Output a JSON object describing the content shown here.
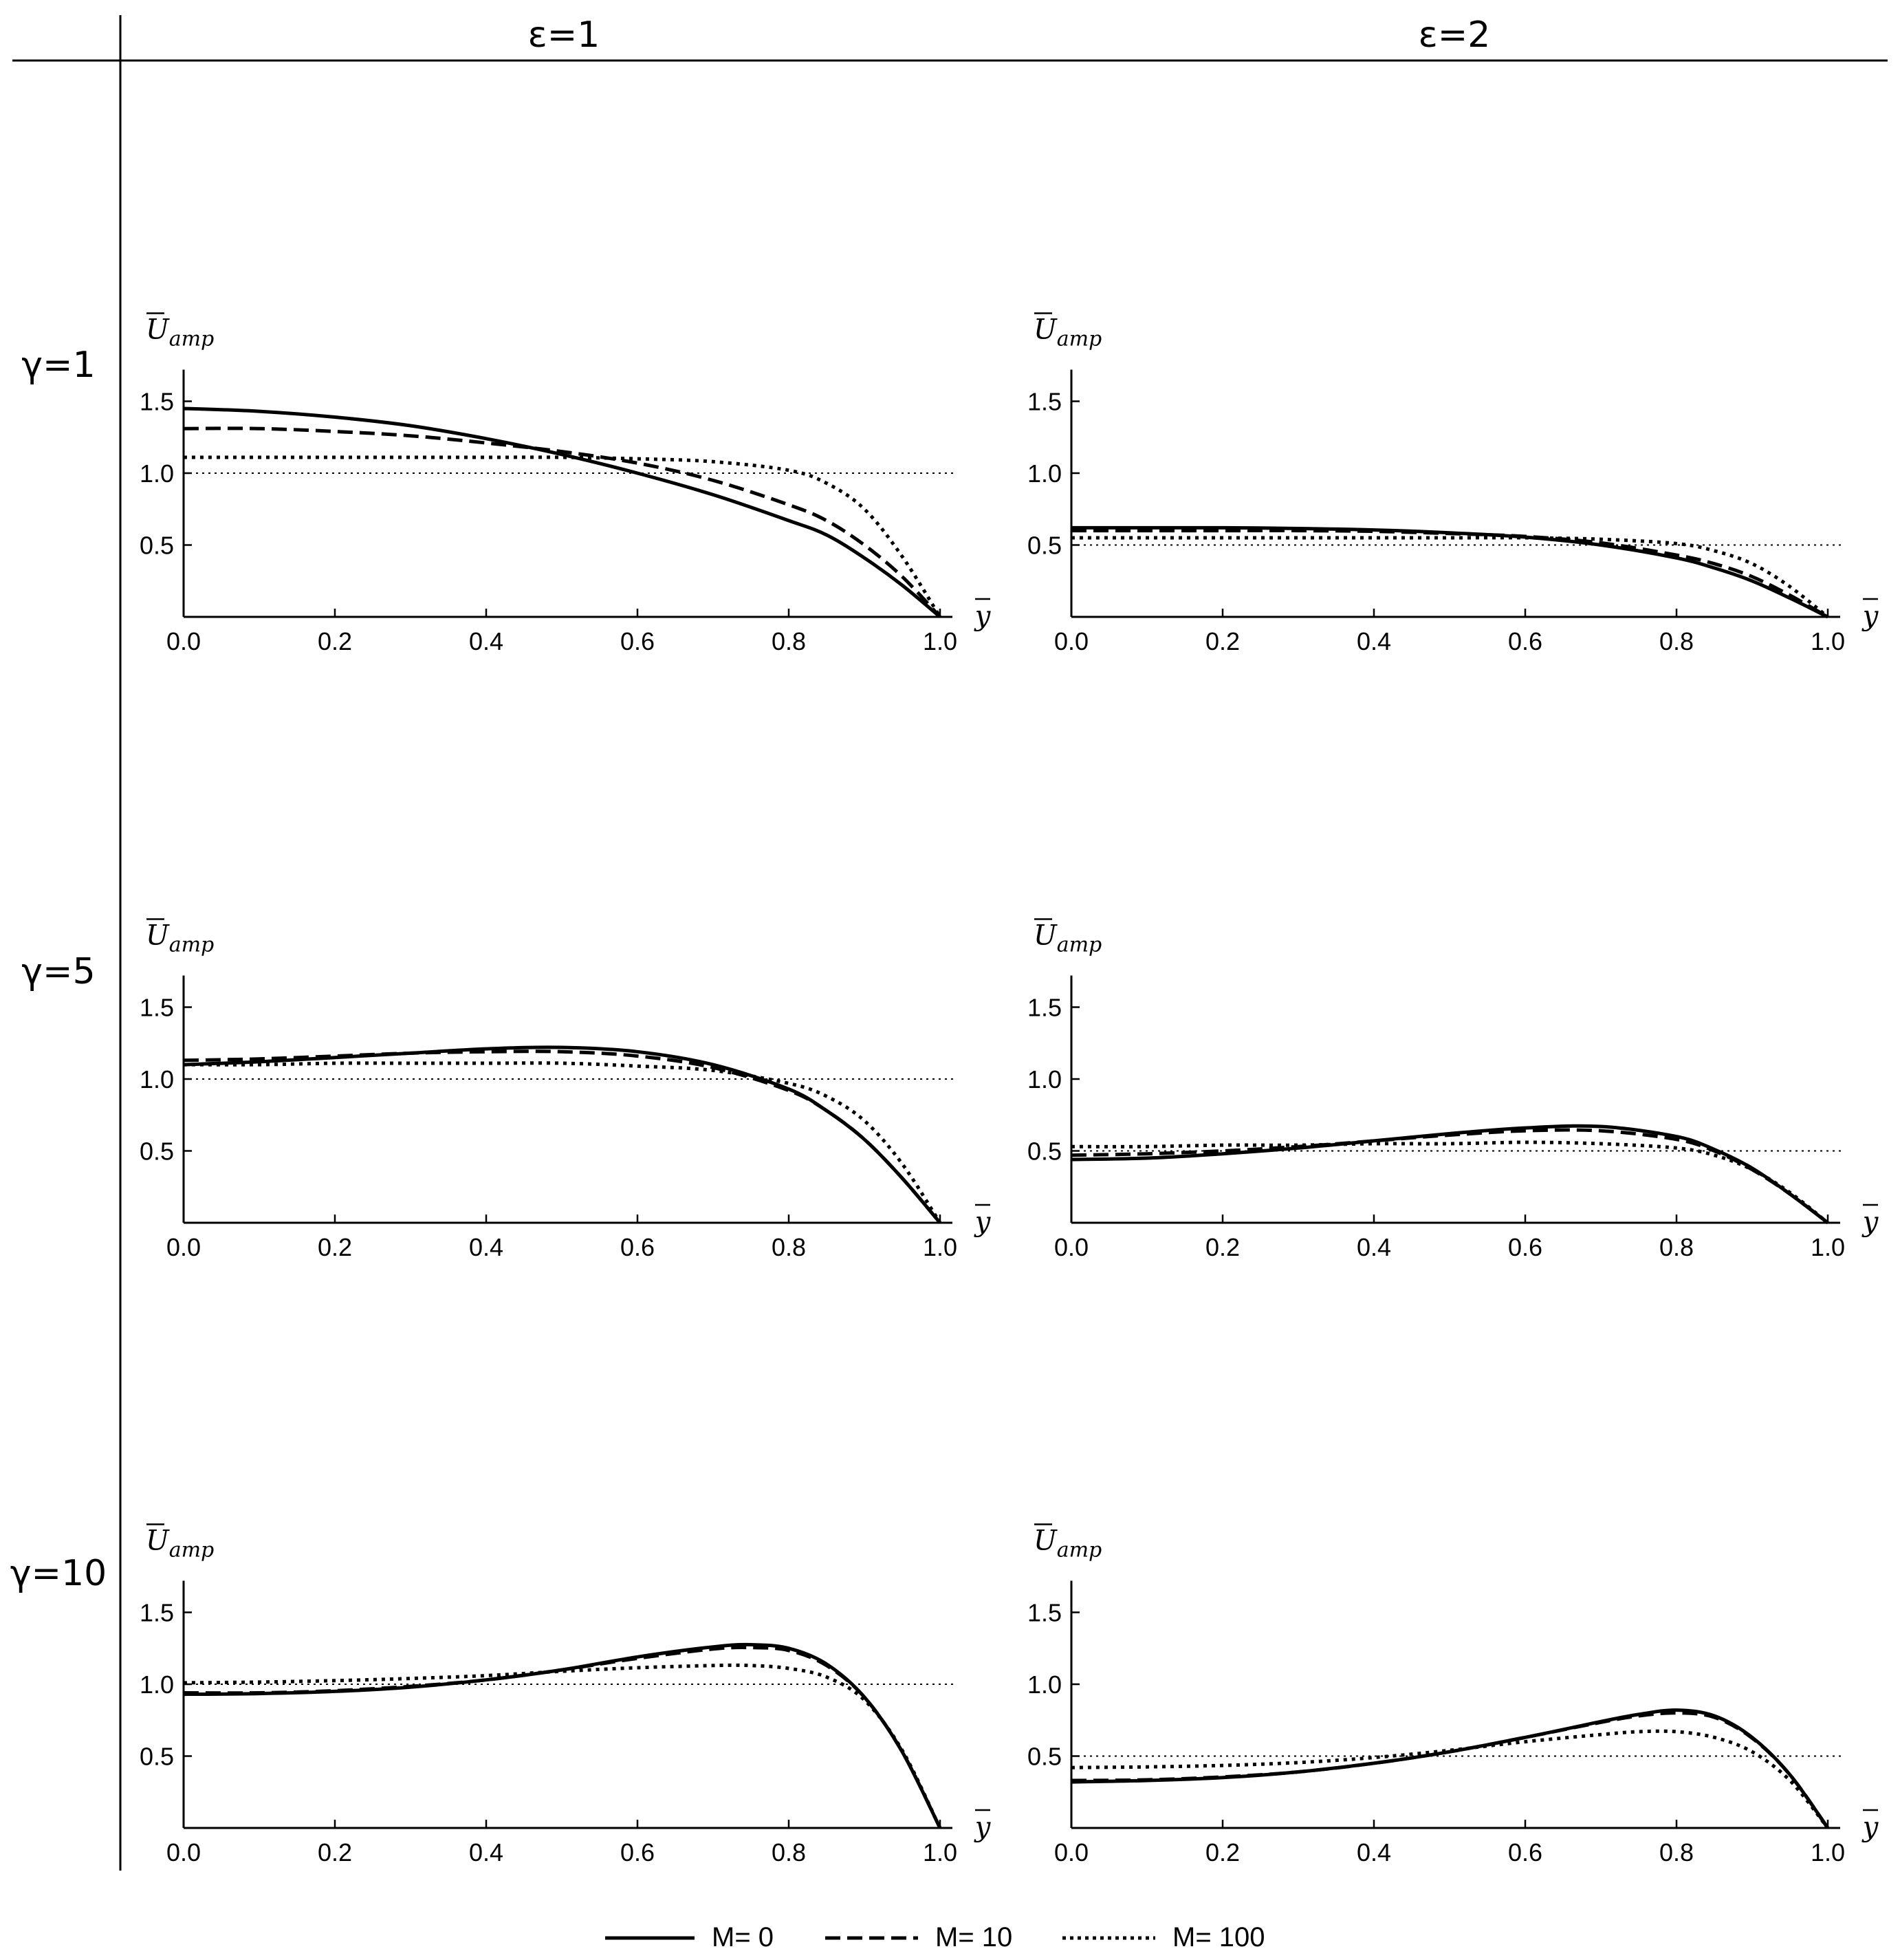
{
  "header": {
    "col_headers": [
      "ε=1",
      "ε=2"
    ],
    "row_headers": [
      "γ=1",
      "γ=5",
      "γ=10"
    ]
  },
  "legend": [
    {
      "name": "M= 0",
      "style": "solid"
    },
    {
      "name": "M= 10",
      "style": "dashed"
    },
    {
      "name": "M= 100",
      "style": "dotted"
    }
  ],
  "colors": {
    "line": "#000000",
    "background": "#ffffff"
  },
  "chart_data": [
    {
      "type": "line",
      "row": "γ=1",
      "col": "ε=1",
      "ylabel": "U",
      "ylabel_sub": "amp",
      "xlabel": "y",
      "xlim": [
        0,
        1
      ],
      "ylim": [
        0,
        1.7
      ],
      "xticks": [
        "0.0",
        "0.2",
        "0.4",
        "0.6",
        "0.8",
        "1.0"
      ],
      "yticks": [
        "0.5",
        "1.0",
        "1.5"
      ],
      "reference_y": 1.0,
      "x": [
        0,
        0.1,
        0.2,
        0.3,
        0.4,
        0.5,
        0.6,
        0.7,
        0.8,
        0.85,
        0.9,
        0.95,
        1.0
      ],
      "series": [
        {
          "name": "M= 0",
          "values": [
            1.45,
            1.43,
            1.39,
            1.33,
            1.24,
            1.13,
            1.0,
            0.85,
            0.67,
            0.57,
            0.41,
            0.22,
            0.0
          ]
        },
        {
          "name": "M= 10",
          "values": [
            1.31,
            1.31,
            1.29,
            1.26,
            1.21,
            1.15,
            1.07,
            0.95,
            0.78,
            0.67,
            0.5,
            0.28,
            0.0
          ]
        },
        {
          "name": "M= 100",
          "values": [
            1.11,
            1.11,
            1.11,
            1.11,
            1.11,
            1.11,
            1.1,
            1.08,
            1.02,
            0.93,
            0.75,
            0.42,
            0.0
          ]
        }
      ]
    },
    {
      "type": "line",
      "row": "γ=1",
      "col": "ε=2",
      "ylabel": "U",
      "ylabel_sub": "amp",
      "xlabel": "y",
      "xlim": [
        0,
        1
      ],
      "ylim": [
        0,
        1.7
      ],
      "xticks": [
        "0.0",
        "0.2",
        "0.4",
        "0.6",
        "0.8",
        "1.0"
      ],
      "yticks": [
        "0.5",
        "1.0",
        "1.5"
      ],
      "reference_y": 0.5,
      "x": [
        0,
        0.1,
        0.2,
        0.3,
        0.4,
        0.5,
        0.6,
        0.7,
        0.8,
        0.85,
        0.9,
        0.95,
        1.0
      ],
      "series": [
        {
          "name": "M= 0",
          "values": [
            0.62,
            0.62,
            0.62,
            0.615,
            0.605,
            0.585,
            0.555,
            0.5,
            0.41,
            0.34,
            0.25,
            0.13,
            0.0
          ]
        },
        {
          "name": "M= 10",
          "values": [
            0.6,
            0.6,
            0.6,
            0.6,
            0.595,
            0.58,
            0.56,
            0.515,
            0.43,
            0.37,
            0.28,
            0.15,
            0.0
          ]
        },
        {
          "name": "M= 100",
          "values": [
            0.55,
            0.55,
            0.55,
            0.55,
            0.55,
            0.55,
            0.55,
            0.54,
            0.51,
            0.46,
            0.37,
            0.21,
            0.0
          ]
        }
      ]
    },
    {
      "type": "line",
      "row": "γ=5",
      "col": "ε=1",
      "ylabel": "U",
      "ylabel_sub": "amp",
      "xlabel": "y",
      "xlim": [
        0,
        1
      ],
      "ylim": [
        0,
        1.7
      ],
      "xticks": [
        "0.0",
        "0.2",
        "0.4",
        "0.6",
        "0.8",
        "1.0"
      ],
      "yticks": [
        "0.5",
        "1.0",
        "1.5"
      ],
      "reference_y": 1.0,
      "x": [
        0,
        0.1,
        0.2,
        0.3,
        0.4,
        0.5,
        0.6,
        0.7,
        0.8,
        0.85,
        0.9,
        0.95,
        1.0
      ],
      "series": [
        {
          "name": "M= 0",
          "values": [
            1.1,
            1.12,
            1.15,
            1.18,
            1.21,
            1.22,
            1.19,
            1.1,
            0.93,
            0.78,
            0.58,
            0.31,
            0.0
          ]
        },
        {
          "name": "M= 10",
          "values": [
            1.13,
            1.14,
            1.16,
            1.18,
            1.19,
            1.19,
            1.16,
            1.08,
            0.92,
            0.78,
            0.58,
            0.31,
            0.0
          ]
        },
        {
          "name": "M= 100",
          "values": [
            1.1,
            1.1,
            1.11,
            1.11,
            1.11,
            1.11,
            1.09,
            1.06,
            0.97,
            0.88,
            0.71,
            0.41,
            0.0
          ]
        }
      ]
    },
    {
      "type": "line",
      "row": "γ=5",
      "col": "ε=2",
      "ylabel": "U",
      "ylabel_sub": "amp",
      "xlabel": "y",
      "xlim": [
        0,
        1
      ],
      "ylim": [
        0,
        1.7
      ],
      "xticks": [
        "0.0",
        "0.2",
        "0.4",
        "0.6",
        "0.8",
        "1.0"
      ],
      "yticks": [
        "0.5",
        "1.0",
        "1.5"
      ],
      "reference_y": 0.5,
      "x": [
        0,
        0.1,
        0.2,
        0.3,
        0.4,
        0.5,
        0.6,
        0.7,
        0.8,
        0.85,
        0.9,
        0.95,
        1.0
      ],
      "series": [
        {
          "name": "M= 0",
          "values": [
            0.44,
            0.45,
            0.48,
            0.52,
            0.57,
            0.62,
            0.66,
            0.67,
            0.6,
            0.51,
            0.38,
            0.2,
            0.0
          ]
        },
        {
          "name": "M= 10",
          "values": [
            0.47,
            0.48,
            0.5,
            0.53,
            0.57,
            0.61,
            0.64,
            0.64,
            0.58,
            0.5,
            0.37,
            0.2,
            0.0
          ]
        },
        {
          "name": "M= 100",
          "values": [
            0.53,
            0.53,
            0.54,
            0.54,
            0.55,
            0.55,
            0.56,
            0.55,
            0.52,
            0.47,
            0.37,
            0.21,
            0.0
          ]
        }
      ]
    },
    {
      "type": "line",
      "row": "γ=10",
      "col": "ε=1",
      "ylabel": "U",
      "ylabel_sub": "amp",
      "xlabel": "y",
      "xlim": [
        0,
        1
      ],
      "ylim": [
        0,
        1.7
      ],
      "xticks": [
        "0.0",
        "0.2",
        "0.4",
        "0.6",
        "0.8",
        "1.0"
      ],
      "yticks": [
        "0.5",
        "1.0",
        "1.5"
      ],
      "reference_y": 1.0,
      "x": [
        0,
        0.1,
        0.2,
        0.3,
        0.4,
        0.5,
        0.6,
        0.7,
        0.75,
        0.8,
        0.85,
        0.9,
        0.95,
        1.0
      ],
      "series": [
        {
          "name": "M= 0",
          "values": [
            0.93,
            0.935,
            0.95,
            0.98,
            1.03,
            1.1,
            1.19,
            1.26,
            1.275,
            1.25,
            1.14,
            0.91,
            0.53,
            0.0
          ]
        },
        {
          "name": "M= 10",
          "values": [
            0.94,
            0.94,
            0.955,
            0.985,
            1.03,
            1.1,
            1.18,
            1.245,
            1.255,
            1.235,
            1.13,
            0.91,
            0.53,
            0.0
          ]
        },
        {
          "name": "M= 100",
          "values": [
            1.01,
            1.015,
            1.025,
            1.04,
            1.06,
            1.09,
            1.115,
            1.13,
            1.13,
            1.11,
            1.05,
            0.89,
            0.54,
            0.0
          ]
        }
      ]
    },
    {
      "type": "line",
      "row": "γ=10",
      "col": "ε=2",
      "ylabel": "U",
      "ylabel_sub": "amp",
      "xlabel": "y",
      "xlim": [
        0,
        1
      ],
      "ylim": [
        0,
        1.7
      ],
      "xticks": [
        "0.0",
        "0.2",
        "0.4",
        "0.6",
        "0.8",
        "1.0"
      ],
      "yticks": [
        "0.5",
        "1.0",
        "1.5"
      ],
      "reference_y": 0.5,
      "x": [
        0,
        0.1,
        0.2,
        0.3,
        0.4,
        0.5,
        0.6,
        0.7,
        0.75,
        0.8,
        0.85,
        0.9,
        0.95,
        1.0
      ],
      "series": [
        {
          "name": "M= 0",
          "values": [
            0.32,
            0.33,
            0.35,
            0.39,
            0.45,
            0.53,
            0.63,
            0.74,
            0.79,
            0.82,
            0.78,
            0.63,
            0.37,
            0.0
          ]
        },
        {
          "name": "M= 10",
          "values": [
            0.33,
            0.335,
            0.355,
            0.39,
            0.45,
            0.53,
            0.63,
            0.735,
            0.78,
            0.8,
            0.77,
            0.625,
            0.37,
            0.0
          ]
        },
        {
          "name": "M= 100",
          "values": [
            0.42,
            0.425,
            0.435,
            0.455,
            0.49,
            0.54,
            0.6,
            0.65,
            0.67,
            0.67,
            0.63,
            0.53,
            0.33,
            0.0
          ]
        }
      ]
    }
  ]
}
